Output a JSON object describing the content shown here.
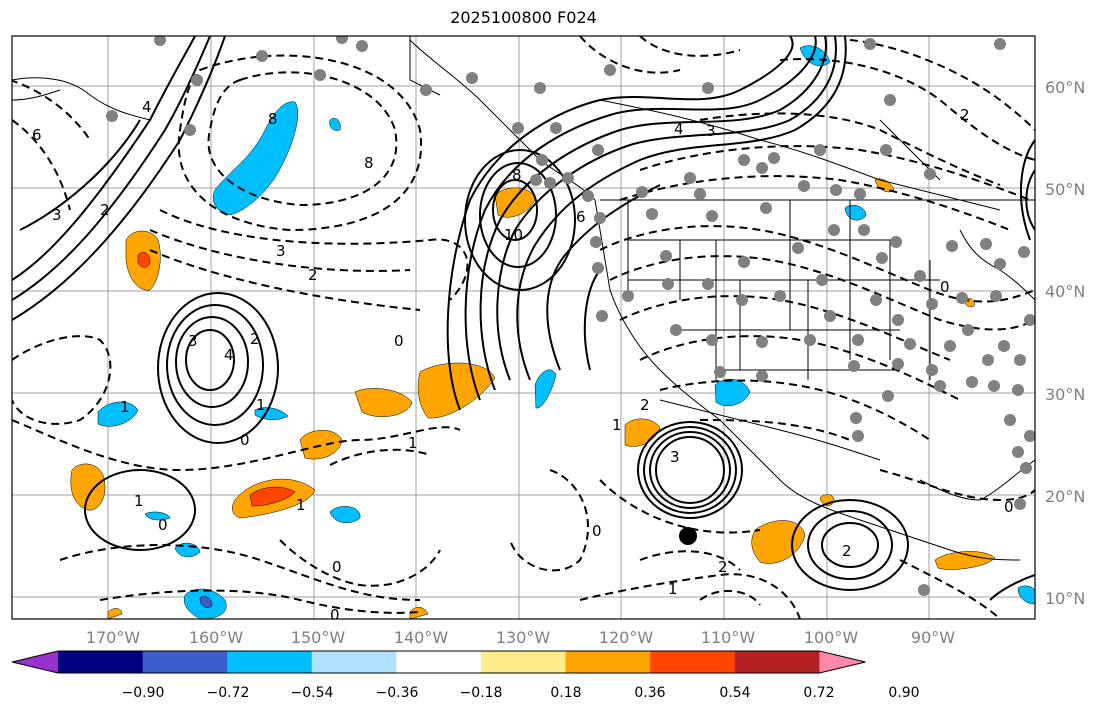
{
  "title": "2025100800 F024",
  "lat_labels": [
    "60°N",
    "50°N",
    "40°N",
    "30°N",
    "20°N",
    "10°N"
  ],
  "lon_labels": [
    "170°W",
    "160°W",
    "150°W",
    "140°W",
    "130°W",
    "120°W",
    "110°W",
    "100°W",
    "90°W"
  ],
  "colorbar": {
    "ticks": [
      "−0.90",
      "−0.72",
      "−0.54",
      "−0.36",
      "−0.18",
      "0.18",
      "0.36",
      "0.54",
      "0.72",
      "0.90"
    ],
    "colors": [
      "#9932cc",
      "#000080",
      "#3a5fcd",
      "#00bfff",
      "#b0e2ff",
      "#ffffff",
      "#ffec8b",
      "#ffa500",
      "#ff4500",
      "#b22222",
      "#ff88aa"
    ]
  },
  "contour_labels": [
    "6",
    "4",
    "3",
    "2",
    "8",
    "8",
    "3",
    "2",
    "0",
    "3",
    "4",
    "2",
    "1",
    "0",
    "1",
    "1",
    "0",
    "1",
    "0",
    "0",
    "1",
    "8",
    "10",
    "6",
    "4",
    "3",
    "1",
    "2",
    "3",
    "0",
    "2",
    "1",
    "2",
    "0",
    "0",
    "2"
  ],
  "colors": {
    "contour": "#000000",
    "station": "#808080",
    "grid": "#a0a0a0",
    "pos_light": "#ffa500",
    "pos_strong": "#ff4500",
    "neg_light": "#00bfff",
    "neg_strong": "#3a5fcd"
  }
}
